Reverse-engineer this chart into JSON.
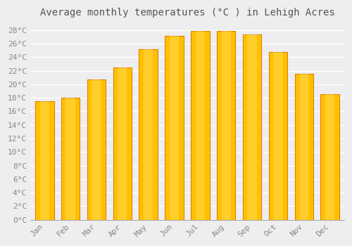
{
  "title": "Average monthly temperatures (°C ) in Lehigh Acres",
  "months": [
    "Jan",
    "Feb",
    "Mar",
    "Apr",
    "May",
    "Jun",
    "Jul",
    "Aug",
    "Sep",
    "Oct",
    "Nov",
    "Dec"
  ],
  "temperatures": [
    17.5,
    18.0,
    20.7,
    22.5,
    25.2,
    27.2,
    27.9,
    27.9,
    27.4,
    24.8,
    21.5,
    18.5
  ],
  "bar_color": "#FFC000",
  "bar_edge_color": "#E08000",
  "ylim": [
    0,
    29
  ],
  "yticks": [
    0,
    2,
    4,
    6,
    8,
    10,
    12,
    14,
    16,
    18,
    20,
    22,
    24,
    26,
    28
  ],
  "background_color": "#EEEEF0",
  "plot_bg_color": "#EEEEF0",
  "grid_color": "#FFFFFF",
  "title_fontsize": 10,
  "tick_fontsize": 8,
  "title_color": "#555555",
  "tick_color": "#888888"
}
